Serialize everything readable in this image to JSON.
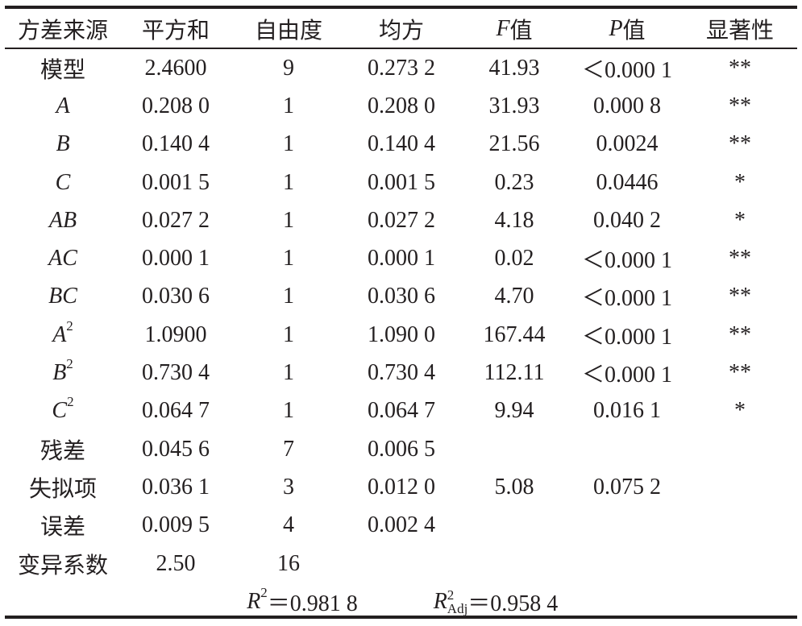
{
  "table": {
    "header": [
      "方差来源",
      "平方和",
      "自由度",
      "均方",
      {
        "italic": "F",
        "text": "值"
      },
      {
        "italic": "P",
        "text": "值"
      },
      "显著性"
    ],
    "rows": [
      [
        "模型",
        "2.4600",
        "9",
        "0.273 2",
        "41.93",
        "＜0.000 1",
        "**"
      ],
      [
        {
          "italic": "A"
        },
        "0.208 0",
        "1",
        "0.208 0",
        "31.93",
        "0.000 8",
        "**"
      ],
      [
        {
          "italic": "B"
        },
        "0.140 4",
        "1",
        "0.140 4",
        "21.56",
        "0.0024",
        "**"
      ],
      [
        {
          "italic": "C"
        },
        "0.001 5",
        "1",
        "0.001 5",
        "0.23",
        "0.0446",
        "*"
      ],
      [
        {
          "italic": "AB"
        },
        "0.027 2",
        "1",
        "0.027 2",
        "4.18",
        "0.040 2",
        "*"
      ],
      [
        {
          "italic": "AC"
        },
        "0.000 1",
        "1",
        "0.000 1",
        "0.02",
        "＜0.000 1",
        "**"
      ],
      [
        {
          "italic": "BC"
        },
        "0.030 6",
        "1",
        "0.030 6",
        "4.70",
        "＜0.000 1",
        "**"
      ],
      [
        {
          "italic": "A",
          "sup": "2"
        },
        "1.0900",
        "1",
        "1.090 0",
        "167.44",
        "＜0.000 1",
        "**"
      ],
      [
        {
          "italic": "B",
          "sup": "2"
        },
        "0.730 4",
        "1",
        "0.730 4",
        "112.11",
        "＜0.000 1",
        "**"
      ],
      [
        {
          "italic": "C",
          "sup": "2"
        },
        "0.064 7",
        "1",
        "0.064 7",
        "9.94",
        "0.016 1",
        "*"
      ],
      [
        "残差",
        "0.045 6",
        "7",
        "0.006 5",
        null,
        null,
        null
      ],
      [
        "失拟项",
        "0.036 1",
        "3",
        "0.012 0",
        "5.08",
        "0.075 2",
        null
      ],
      [
        "误差",
        "0.009 5",
        "4",
        "0.002 4",
        null,
        null,
        null
      ],
      [
        "变异系数",
        "2.50",
        "16",
        null,
        null,
        null,
        null
      ]
    ],
    "footer": [
      {
        "italic": "R",
        "sup": "2",
        "text": "＝0.981 8"
      },
      {
        "italic": "R",
        "sup": "2",
        "sub": "Adj",
        "text": "＝0.958 4"
      }
    ]
  }
}
